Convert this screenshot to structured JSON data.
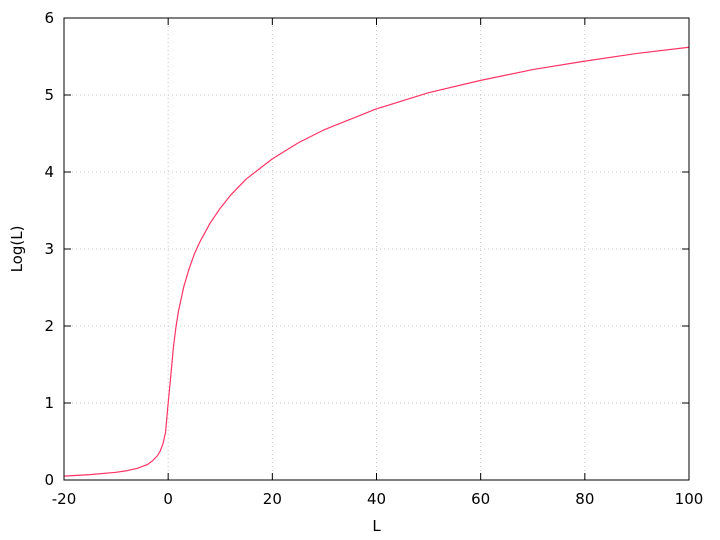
{
  "chart_data": {
    "type": "line",
    "title": "",
    "xlabel": "L",
    "ylabel": "Log(L)",
    "xlim": [
      -20,
      100
    ],
    "ylim": [
      0,
      6
    ],
    "x_ticks": [
      -20,
      0,
      20,
      40,
      60,
      80,
      100
    ],
    "y_ticks": [
      0,
      1,
      2,
      3,
      4,
      5,
      6
    ],
    "grid": true,
    "legend": "none",
    "series": [
      {
        "color": "#ff3366",
        "x": [
          -20,
          -15,
          -10,
          -8,
          -6,
          -4,
          -3,
          -2,
          -1.5,
          -1,
          -0.5,
          0,
          0.5,
          1,
          1.5,
          2,
          3,
          4,
          5,
          6,
          8,
          10,
          12,
          15,
          20,
          25,
          30,
          40,
          50,
          60,
          70,
          80,
          90,
          100
        ],
        "y": [
          0.05,
          0.07,
          0.1,
          0.12,
          0.15,
          0.2,
          0.25,
          0.32,
          0.38,
          0.47,
          0.62,
          1.0,
          1.35,
          1.72,
          1.99,
          2.2,
          2.51,
          2.74,
          2.93,
          3.08,
          3.33,
          3.53,
          3.7,
          3.91,
          4.17,
          4.38,
          4.55,
          4.82,
          5.03,
          5.19,
          5.33,
          5.44,
          5.54,
          5.62
        ]
      }
    ]
  }
}
